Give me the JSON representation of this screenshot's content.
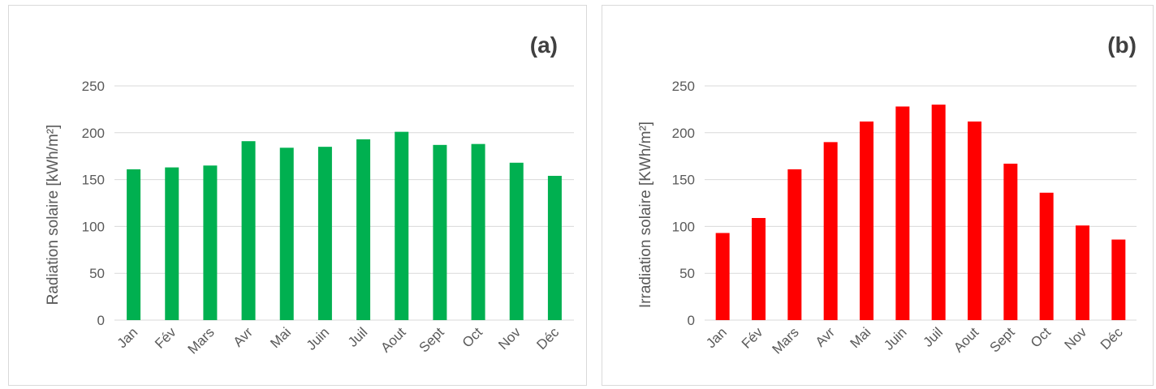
{
  "chart_data": [
    {
      "type": "bar",
      "panel_label": "(a)",
      "title": "",
      "xlabel": "",
      "ylabel": "Radiation solaire [kWh/m²]",
      "ylim": [
        0,
        250
      ],
      "yticks": [
        0,
        50,
        100,
        150,
        200,
        250
      ],
      "grid": true,
      "color": "#00b050",
      "categories": [
        "Jan",
        "Fév",
        "Mars",
        "Avr",
        "Mai",
        "Juin",
        "Juil",
        "Aout",
        "Sept",
        "Oct",
        "Nov",
        "Déc"
      ],
      "values": [
        161,
        163,
        165,
        191,
        184,
        185,
        193,
        201,
        187,
        188,
        168,
        154
      ]
    },
    {
      "type": "bar",
      "panel_label": "(b)",
      "title": "",
      "xlabel": "",
      "ylabel": "Irradiation solaire [KWh/m²]",
      "ylim": [
        0,
        250
      ],
      "yticks": [
        0,
        50,
        100,
        150,
        200,
        250
      ],
      "grid": true,
      "color": "#ff0000",
      "categories": [
        "Jan",
        "Fév",
        "Mars",
        "Avr",
        "Mai",
        "Juin",
        "Juil",
        "Aout",
        "Sept",
        "Oct",
        "Nov",
        "Déc"
      ],
      "values": [
        93,
        109,
        161,
        190,
        212,
        228,
        230,
        212,
        167,
        136,
        101,
        86
      ]
    }
  ]
}
